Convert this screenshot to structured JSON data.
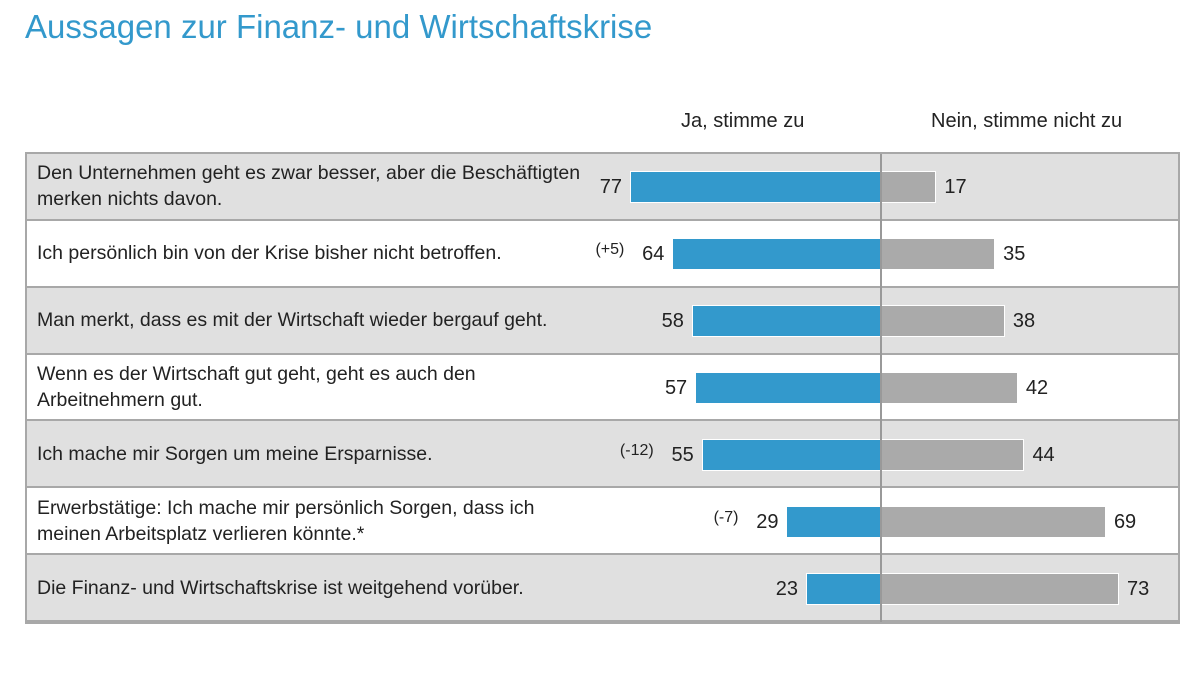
{
  "chart_data": {
    "type": "bar",
    "orientation": "horizontal-diverging",
    "title": "Aussagen zur Finanz- und Wirtschaftskrise",
    "categories": [
      "Den Unternehmen geht es zwar besser, aber die Beschäftigten merken nichts davon.",
      "Ich persönlich bin von der Krise bisher nicht betroffen.",
      "Man merkt, dass es mit der Wirtschaft wieder bergauf geht.",
      "Wenn es der Wirtschaft gut geht, geht es auch den Arbeitnehmern gut.",
      "Ich mache mir Sorgen um meine Ersparnisse.",
      "Erwerbstätige: Ich mache mir persönlich Sorgen, dass ich meinen Arbeitsplatz verlieren könnte.*",
      "Die Finanz- und Wirtschaftskrise ist weitgehend vorüber."
    ],
    "series": [
      {
        "name": "Ja, stimme zu",
        "color": "#3399cc",
        "values": [
          77,
          64,
          58,
          57,
          55,
          29,
          23
        ]
      },
      {
        "name": "Nein, stimme nicht zu",
        "color": "#aaaaaa",
        "values": [
          17,
          35,
          38,
          42,
          44,
          69,
          73
        ]
      }
    ],
    "changes": [
      "",
      "(+5)",
      "",
      "",
      "(-12)",
      "(-7)",
      ""
    ],
    "row_backgrounds": [
      "#e0e0e0",
      "#ffffff"
    ]
  }
}
